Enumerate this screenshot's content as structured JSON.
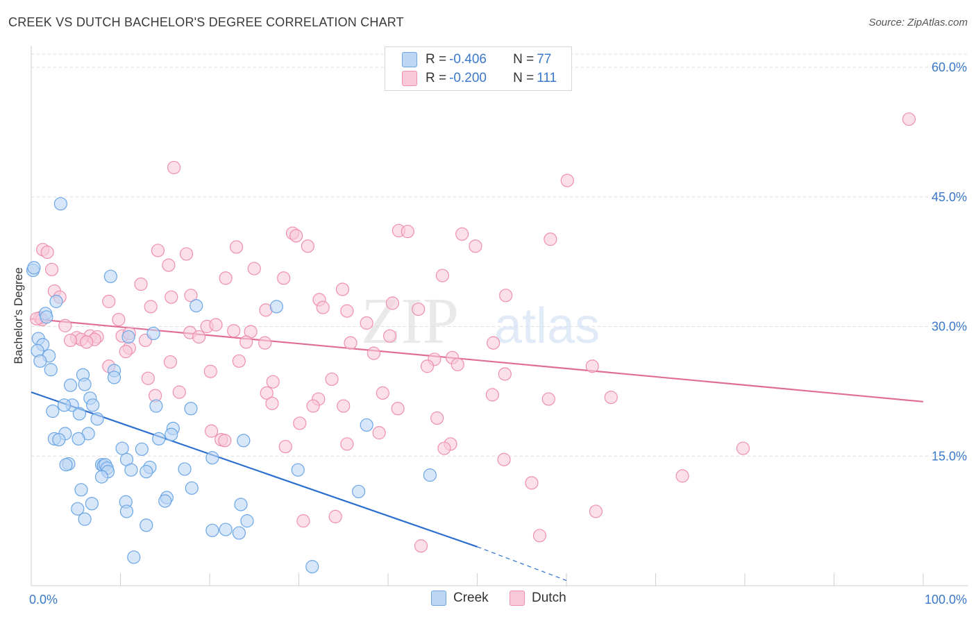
{
  "header": {
    "title": "CREEK VS DUTCH BACHELOR'S DEGREE CORRELATION CHART",
    "source": "Source: ZipAtlas.com"
  },
  "colors": {
    "creek": "#6aa6e6",
    "creek_fill": "#bcd6f4",
    "creek_line": "#2a6fd0",
    "dutch": "#ee8fb0",
    "dutch_fill": "#f9c9da",
    "dutch_line": "#e06d98",
    "grid": "#dddddd",
    "accent_text": "#3a78c9"
  },
  "legend": {
    "rows": [
      {
        "r_label": "R = ",
        "r_value": "-0.406",
        "n_label": "N = ",
        "n_value": "77"
      },
      {
        "r_label": "R = ",
        "r_value": "-0.200",
        "n_label": "N = ",
        "n_value": "111"
      }
    ]
  },
  "bottom_legend": [
    "Creek",
    "Dutch"
  ],
  "watermark": {
    "zip": "ZIP",
    "atlas": "atlas"
  },
  "chart_data": {
    "type": "scatter",
    "title": "CREEK VS DUTCH BACHELOR'S DEGREE CORRELATION CHART",
    "xlabel": "",
    "ylabel": "Bachelor's Degree",
    "xlim": [
      0,
      100
    ],
    "ylim": [
      0,
      64.5
    ],
    "x_tick_labels": [
      "0.0%",
      "100.0%"
    ],
    "y_ticks": [
      15,
      30,
      45,
      60
    ],
    "y_tick_labels": [
      "15.0%",
      "30.0%",
      "45.0%",
      "60.0%"
    ],
    "grid": true,
    "legend_position": "top-center",
    "series": [
      {
        "name": "Creek",
        "r": -0.406,
        "n": 77,
        "trend": {
          "x0": 0,
          "y0": 22.4,
          "x1": 50,
          "y1": 4.5,
          "dashed_to_x": 60,
          "dashed_to_y": 0.6
        },
        "points": [
          [
            3.3,
            44.2
          ],
          [
            0.2,
            36.5
          ],
          [
            8.9,
            35.8
          ],
          [
            1.6,
            31.5
          ],
          [
            1.7,
            31.1
          ],
          [
            2.8,
            32.9
          ],
          [
            18.5,
            32.4
          ],
          [
            27.5,
            32.3
          ],
          [
            13.7,
            29.2
          ],
          [
            10.9,
            28.8
          ],
          [
            0.8,
            28.6
          ],
          [
            1.3,
            27.9
          ],
          [
            0.7,
            27.2
          ],
          [
            2.0,
            26.6
          ],
          [
            1.0,
            26.0
          ],
          [
            2.2,
            25.0
          ],
          [
            9.3,
            24.9
          ],
          [
            5.8,
            24.4
          ],
          [
            9.3,
            24.1
          ],
          [
            6.0,
            23.3
          ],
          [
            4.4,
            23.2
          ],
          [
            6.6,
            21.7
          ],
          [
            6.9,
            20.9
          ],
          [
            4.6,
            20.9
          ],
          [
            3.7,
            20.9
          ],
          [
            14.0,
            20.8
          ],
          [
            17.9,
            20.5
          ],
          [
            2.4,
            20.2
          ],
          [
            5.4,
            19.9
          ],
          [
            7.4,
            19.3
          ],
          [
            37.6,
            18.6
          ],
          [
            15.9,
            18.2
          ],
          [
            3.8,
            17.6
          ],
          [
            6.4,
            17.6
          ],
          [
            15.7,
            17.5
          ],
          [
            14.3,
            17.0
          ],
          [
            2.6,
            17.0
          ],
          [
            3.1,
            16.9
          ],
          [
            5.3,
            17.0
          ],
          [
            23.8,
            16.8
          ],
          [
            10.2,
            15.9
          ],
          [
            12.4,
            15.8
          ],
          [
            20.3,
            14.8
          ],
          [
            10.7,
            14.6
          ],
          [
            4.2,
            14.1
          ],
          [
            7.9,
            14.0
          ],
          [
            8.1,
            13.9
          ],
          [
            8.3,
            14.0
          ],
          [
            3.9,
            14.0
          ],
          [
            17.2,
            13.5
          ],
          [
            13.3,
            13.7
          ],
          [
            8.5,
            13.6
          ],
          [
            11.2,
            13.4
          ],
          [
            12.9,
            13.2
          ],
          [
            8.6,
            13.2
          ],
          [
            7.9,
            12.6
          ],
          [
            29.9,
            13.4
          ],
          [
            44.7,
            12.8
          ],
          [
            18.0,
            11.3
          ],
          [
            5.6,
            11.1
          ],
          [
            36.7,
            10.9
          ],
          [
            15.2,
            10.2
          ],
          [
            10.6,
            9.7
          ],
          [
            15.0,
            9.8
          ],
          [
            23.5,
            9.4
          ],
          [
            6.8,
            9.5
          ],
          [
            5.2,
            8.9
          ],
          [
            10.7,
            8.6
          ],
          [
            6.0,
            7.7
          ],
          [
            24.2,
            7.5
          ],
          [
            12.9,
            7.0
          ],
          [
            20.3,
            6.4
          ],
          [
            21.8,
            6.5
          ],
          [
            23.3,
            6.1
          ],
          [
            11.5,
            3.3
          ],
          [
            31.5,
            2.2
          ],
          [
            0.3,
            36.8
          ]
        ]
      },
      {
        "name": "Dutch",
        "r": -0.2,
        "n": 111,
        "trend": {
          "x0": 0,
          "y0": 30.9,
          "x1": 100,
          "y1": 21.3
        },
        "points": [
          [
            98.4,
            54.0
          ],
          [
            16.0,
            48.4
          ],
          [
            60.1,
            46.9
          ],
          [
            41.2,
            41.1
          ],
          [
            42.2,
            41.0
          ],
          [
            29.3,
            40.8
          ],
          [
            29.7,
            40.5
          ],
          [
            48.3,
            40.7
          ],
          [
            58.2,
            40.1
          ],
          [
            1.3,
            38.9
          ],
          [
            1.8,
            38.6
          ],
          [
            14.2,
            38.8
          ],
          [
            17.4,
            38.4
          ],
          [
            23.0,
            39.2
          ],
          [
            31.0,
            39.3
          ],
          [
            49.8,
            39.3
          ],
          [
            15.4,
            37.1
          ],
          [
            2.3,
            36.6
          ],
          [
            25.0,
            36.7
          ],
          [
            21.8,
            35.6
          ],
          [
            28.3,
            35.6
          ],
          [
            46.1,
            35.9
          ],
          [
            12.3,
            34.9
          ],
          [
            2.6,
            34.1
          ],
          [
            34.9,
            34.3
          ],
          [
            3.2,
            33.4
          ],
          [
            15.7,
            33.4
          ],
          [
            17.9,
            33.6
          ],
          [
            53.2,
            33.6
          ],
          [
            8.7,
            32.9
          ],
          [
            32.3,
            33.1
          ],
          [
            40.5,
            32.7
          ],
          [
            13.4,
            32.3
          ],
          [
            32.7,
            32.2
          ],
          [
            26.3,
            31.9
          ],
          [
            35.4,
            31.8
          ],
          [
            43.4,
            32.0
          ],
          [
            1.0,
            31.0
          ],
          [
            9.8,
            30.8
          ],
          [
            3.8,
            30.1
          ],
          [
            19.7,
            30.0
          ],
          [
            20.7,
            30.2
          ],
          [
            37.6,
            30.4
          ],
          [
            22.7,
            29.5
          ],
          [
            17.8,
            29.3
          ],
          [
            24.6,
            29.4
          ],
          [
            10.2,
            28.9
          ],
          [
            11.0,
            29.2
          ],
          [
            6.6,
            28.9
          ],
          [
            7.4,
            28.8
          ],
          [
            18.8,
            28.8
          ],
          [
            5.1,
            28.7
          ],
          [
            5.6,
            28.5
          ],
          [
            7.1,
            28.5
          ],
          [
            40.2,
            28.9
          ],
          [
            4.4,
            28.4
          ],
          [
            12.8,
            28.4
          ],
          [
            6.2,
            28.2
          ],
          [
            24.1,
            28.2
          ],
          [
            26.2,
            28.1
          ],
          [
            35.8,
            28.1
          ],
          [
            51.8,
            28.1
          ],
          [
            11.0,
            27.5
          ],
          [
            10.6,
            27.1
          ],
          [
            38.4,
            26.9
          ],
          [
            47.2,
            26.4
          ],
          [
            45.2,
            26.2
          ],
          [
            15.6,
            25.9
          ],
          [
            23.3,
            26.0
          ],
          [
            47.8,
            25.6
          ],
          [
            8.7,
            25.4
          ],
          [
            44.4,
            25.4
          ],
          [
            62.9,
            25.4
          ],
          [
            20.1,
            24.8
          ],
          [
            53.1,
            24.5
          ],
          [
            13.1,
            24.0
          ],
          [
            33.7,
            23.9
          ],
          [
            27.1,
            23.6
          ],
          [
            16.6,
            22.4
          ],
          [
            26.4,
            22.3
          ],
          [
            39.4,
            22.3
          ],
          [
            51.7,
            22.1
          ],
          [
            13.9,
            22.0
          ],
          [
            32.2,
            21.6
          ],
          [
            58.0,
            21.6
          ],
          [
            65.0,
            21.8
          ],
          [
            27.0,
            21.1
          ],
          [
            31.6,
            20.8
          ],
          [
            35.0,
            20.8
          ],
          [
            41.1,
            20.5
          ],
          [
            45.5,
            19.4
          ],
          [
            30.1,
            18.8
          ],
          [
            20.2,
            17.9
          ],
          [
            39.0,
            17.7
          ],
          [
            21.3,
            16.9
          ],
          [
            21.7,
            16.8
          ],
          [
            35.4,
            16.4
          ],
          [
            47.0,
            16.4
          ],
          [
            28.5,
            16.1
          ],
          [
            46.3,
            15.9
          ],
          [
            79.8,
            15.9
          ],
          [
            53.0,
            14.6
          ],
          [
            73.0,
            12.7
          ],
          [
            56.1,
            11.9
          ],
          [
            30.5,
            7.5
          ],
          [
            34.1,
            8.0
          ],
          [
            63.3,
            8.6
          ],
          [
            57.0,
            5.8
          ],
          [
            43.7,
            4.6
          ],
          [
            1.2,
            30.8
          ],
          [
            0.6,
            30.9
          ]
        ]
      }
    ]
  }
}
